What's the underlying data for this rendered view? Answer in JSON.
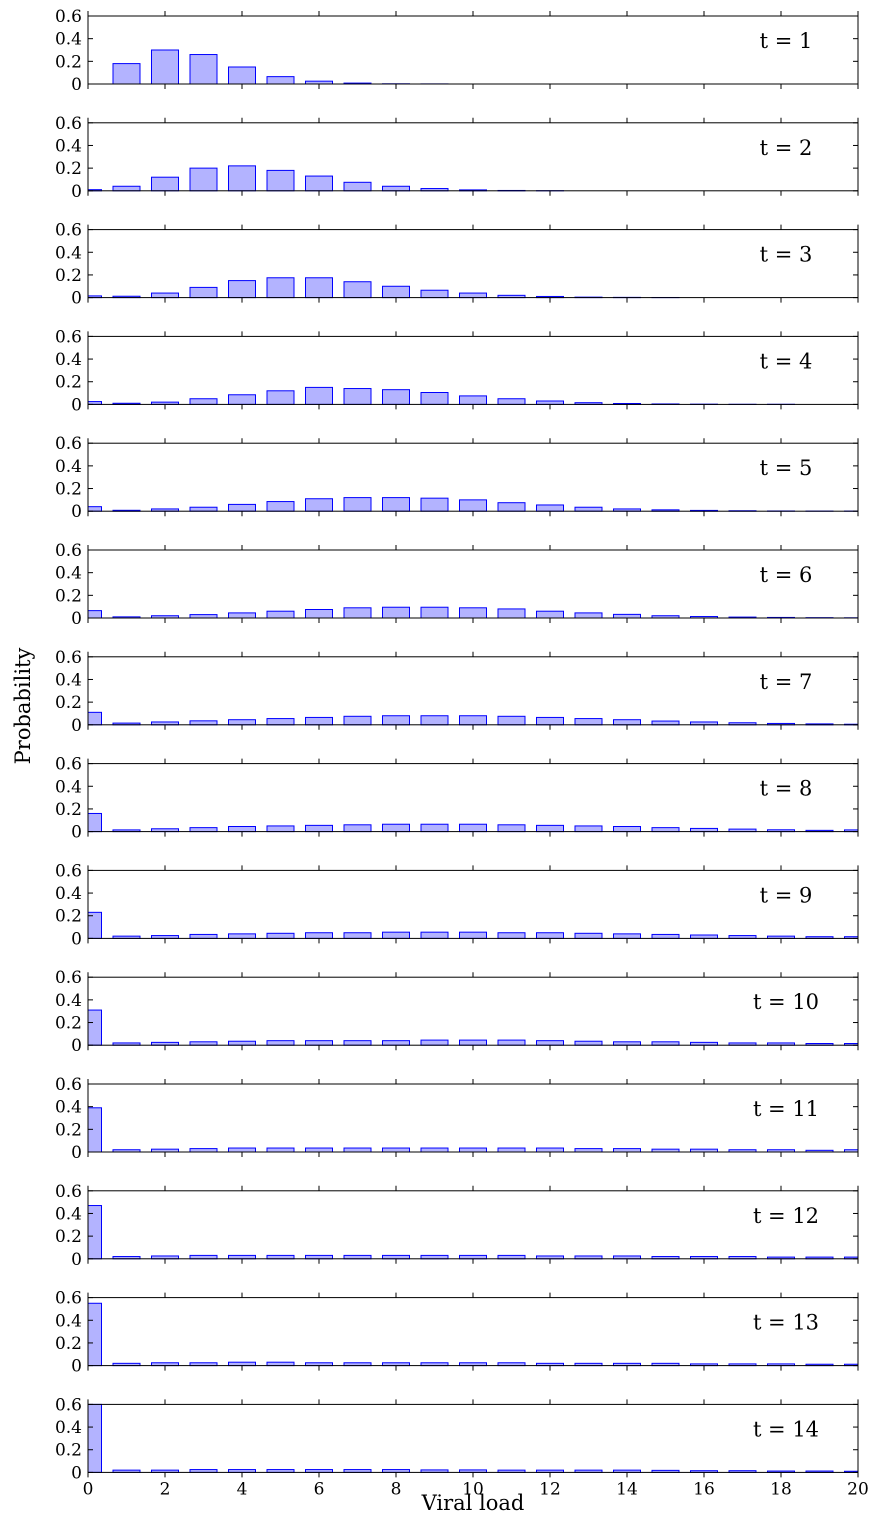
{
  "chart_data": {
    "type": "bar",
    "layout": "14 vertically stacked panels sharing the x axis",
    "xlabel": "Viral load",
    "ylabel": "Probability",
    "xlim": [
      0,
      20
    ],
    "ylim": [
      0,
      0.6
    ],
    "x_ticks": [
      "0",
      "2",
      "4",
      "6",
      "8",
      "10",
      "12",
      "14",
      "16",
      "18",
      "20"
    ],
    "y_ticks": [
      "0",
      "0.2",
      "0.4",
      "0.6"
    ],
    "x": [
      0,
      1,
      2,
      3,
      4,
      5,
      6,
      7,
      8,
      9,
      10,
      11,
      12,
      13,
      14,
      15,
      16,
      17,
      18,
      19,
      20
    ],
    "grid": false,
    "bar_fill": "#b3b3ff",
    "bar_stroke": "#0000ff",
    "panels": [
      {
        "label": "t = 1",
        "values": [
          0.0,
          0.18,
          0.3,
          0.26,
          0.15,
          0.065,
          0.025,
          0.008,
          0.002,
          0.001,
          0,
          0,
          0,
          0,
          0,
          0,
          0,
          0,
          0,
          0,
          0
        ]
      },
      {
        "label": "t = 2",
        "values": [
          0.01,
          0.04,
          0.12,
          0.2,
          0.22,
          0.18,
          0.13,
          0.075,
          0.04,
          0.02,
          0.008,
          0.003,
          0.001,
          0,
          0,
          0,
          0,
          0,
          0,
          0,
          0
        ]
      },
      {
        "label": "t = 3",
        "values": [
          0.015,
          0.012,
          0.04,
          0.09,
          0.15,
          0.175,
          0.175,
          0.14,
          0.1,
          0.065,
          0.04,
          0.02,
          0.01,
          0.004,
          0.002,
          0.001,
          0,
          0,
          0,
          0,
          0
        ]
      },
      {
        "label": "t = 4",
        "values": [
          0.025,
          0.01,
          0.02,
          0.05,
          0.085,
          0.12,
          0.15,
          0.14,
          0.13,
          0.105,
          0.075,
          0.05,
          0.03,
          0.015,
          0.008,
          0.004,
          0.002,
          0.001,
          0.001,
          0,
          0
        ]
      },
      {
        "label": "t = 5",
        "values": [
          0.04,
          0.008,
          0.02,
          0.035,
          0.06,
          0.085,
          0.11,
          0.12,
          0.12,
          0.115,
          0.1,
          0.075,
          0.055,
          0.035,
          0.02,
          0.012,
          0.007,
          0.004,
          0.002,
          0.001,
          0.001
        ]
      },
      {
        "label": "t = 6",
        "values": [
          0.065,
          0.01,
          0.02,
          0.03,
          0.045,
          0.06,
          0.075,
          0.09,
          0.095,
          0.095,
          0.09,
          0.08,
          0.06,
          0.045,
          0.032,
          0.02,
          0.013,
          0.008,
          0.005,
          0.003,
          0.002
        ]
      },
      {
        "label": "t = 7",
        "values": [
          0.11,
          0.015,
          0.025,
          0.035,
          0.045,
          0.055,
          0.065,
          0.075,
          0.08,
          0.08,
          0.08,
          0.075,
          0.065,
          0.055,
          0.045,
          0.033,
          0.025,
          0.018,
          0.012,
          0.008,
          0.005
        ]
      },
      {
        "label": "t = 8",
        "values": [
          0.16,
          0.015,
          0.025,
          0.035,
          0.045,
          0.05,
          0.055,
          0.06,
          0.065,
          0.065,
          0.065,
          0.06,
          0.055,
          0.05,
          0.045,
          0.035,
          0.028,
          0.022,
          0.016,
          0.011,
          0.015
        ]
      },
      {
        "label": "t = 9",
        "values": [
          0.23,
          0.02,
          0.025,
          0.035,
          0.04,
          0.045,
          0.05,
          0.05,
          0.055,
          0.055,
          0.055,
          0.05,
          0.05,
          0.045,
          0.04,
          0.035,
          0.03,
          0.025,
          0.02,
          0.015,
          0.015
        ]
      },
      {
        "label": "t = 10",
        "values": [
          0.31,
          0.02,
          0.025,
          0.03,
          0.035,
          0.04,
          0.04,
          0.04,
          0.04,
          0.045,
          0.045,
          0.045,
          0.04,
          0.035,
          0.03,
          0.03,
          0.025,
          0.02,
          0.02,
          0.015,
          0.015
        ]
      },
      {
        "label": "t = 11",
        "values": [
          0.39,
          0.02,
          0.025,
          0.03,
          0.035,
          0.035,
          0.035,
          0.035,
          0.035,
          0.035,
          0.035,
          0.035,
          0.035,
          0.03,
          0.03,
          0.025,
          0.025,
          0.02,
          0.02,
          0.015,
          0.02
        ]
      },
      {
        "label": "t = 12",
        "values": [
          0.47,
          0.02,
          0.025,
          0.03,
          0.03,
          0.03,
          0.03,
          0.03,
          0.03,
          0.03,
          0.03,
          0.03,
          0.025,
          0.025,
          0.025,
          0.02,
          0.02,
          0.02,
          0.015,
          0.015,
          0.015
        ]
      },
      {
        "label": "t = 13",
        "values": [
          0.55,
          0.02,
          0.025,
          0.025,
          0.03,
          0.03,
          0.025,
          0.025,
          0.025,
          0.025,
          0.025,
          0.025,
          0.02,
          0.02,
          0.02,
          0.02,
          0.015,
          0.015,
          0.015,
          0.012,
          0.012
        ]
      },
      {
        "label": "t = 14",
        "values": [
          0.62,
          0.02,
          0.02,
          0.025,
          0.025,
          0.025,
          0.025,
          0.025,
          0.025,
          0.022,
          0.022,
          0.02,
          0.02,
          0.02,
          0.02,
          0.018,
          0.015,
          0.015,
          0.012,
          0.012,
          0.01
        ]
      }
    ]
  }
}
